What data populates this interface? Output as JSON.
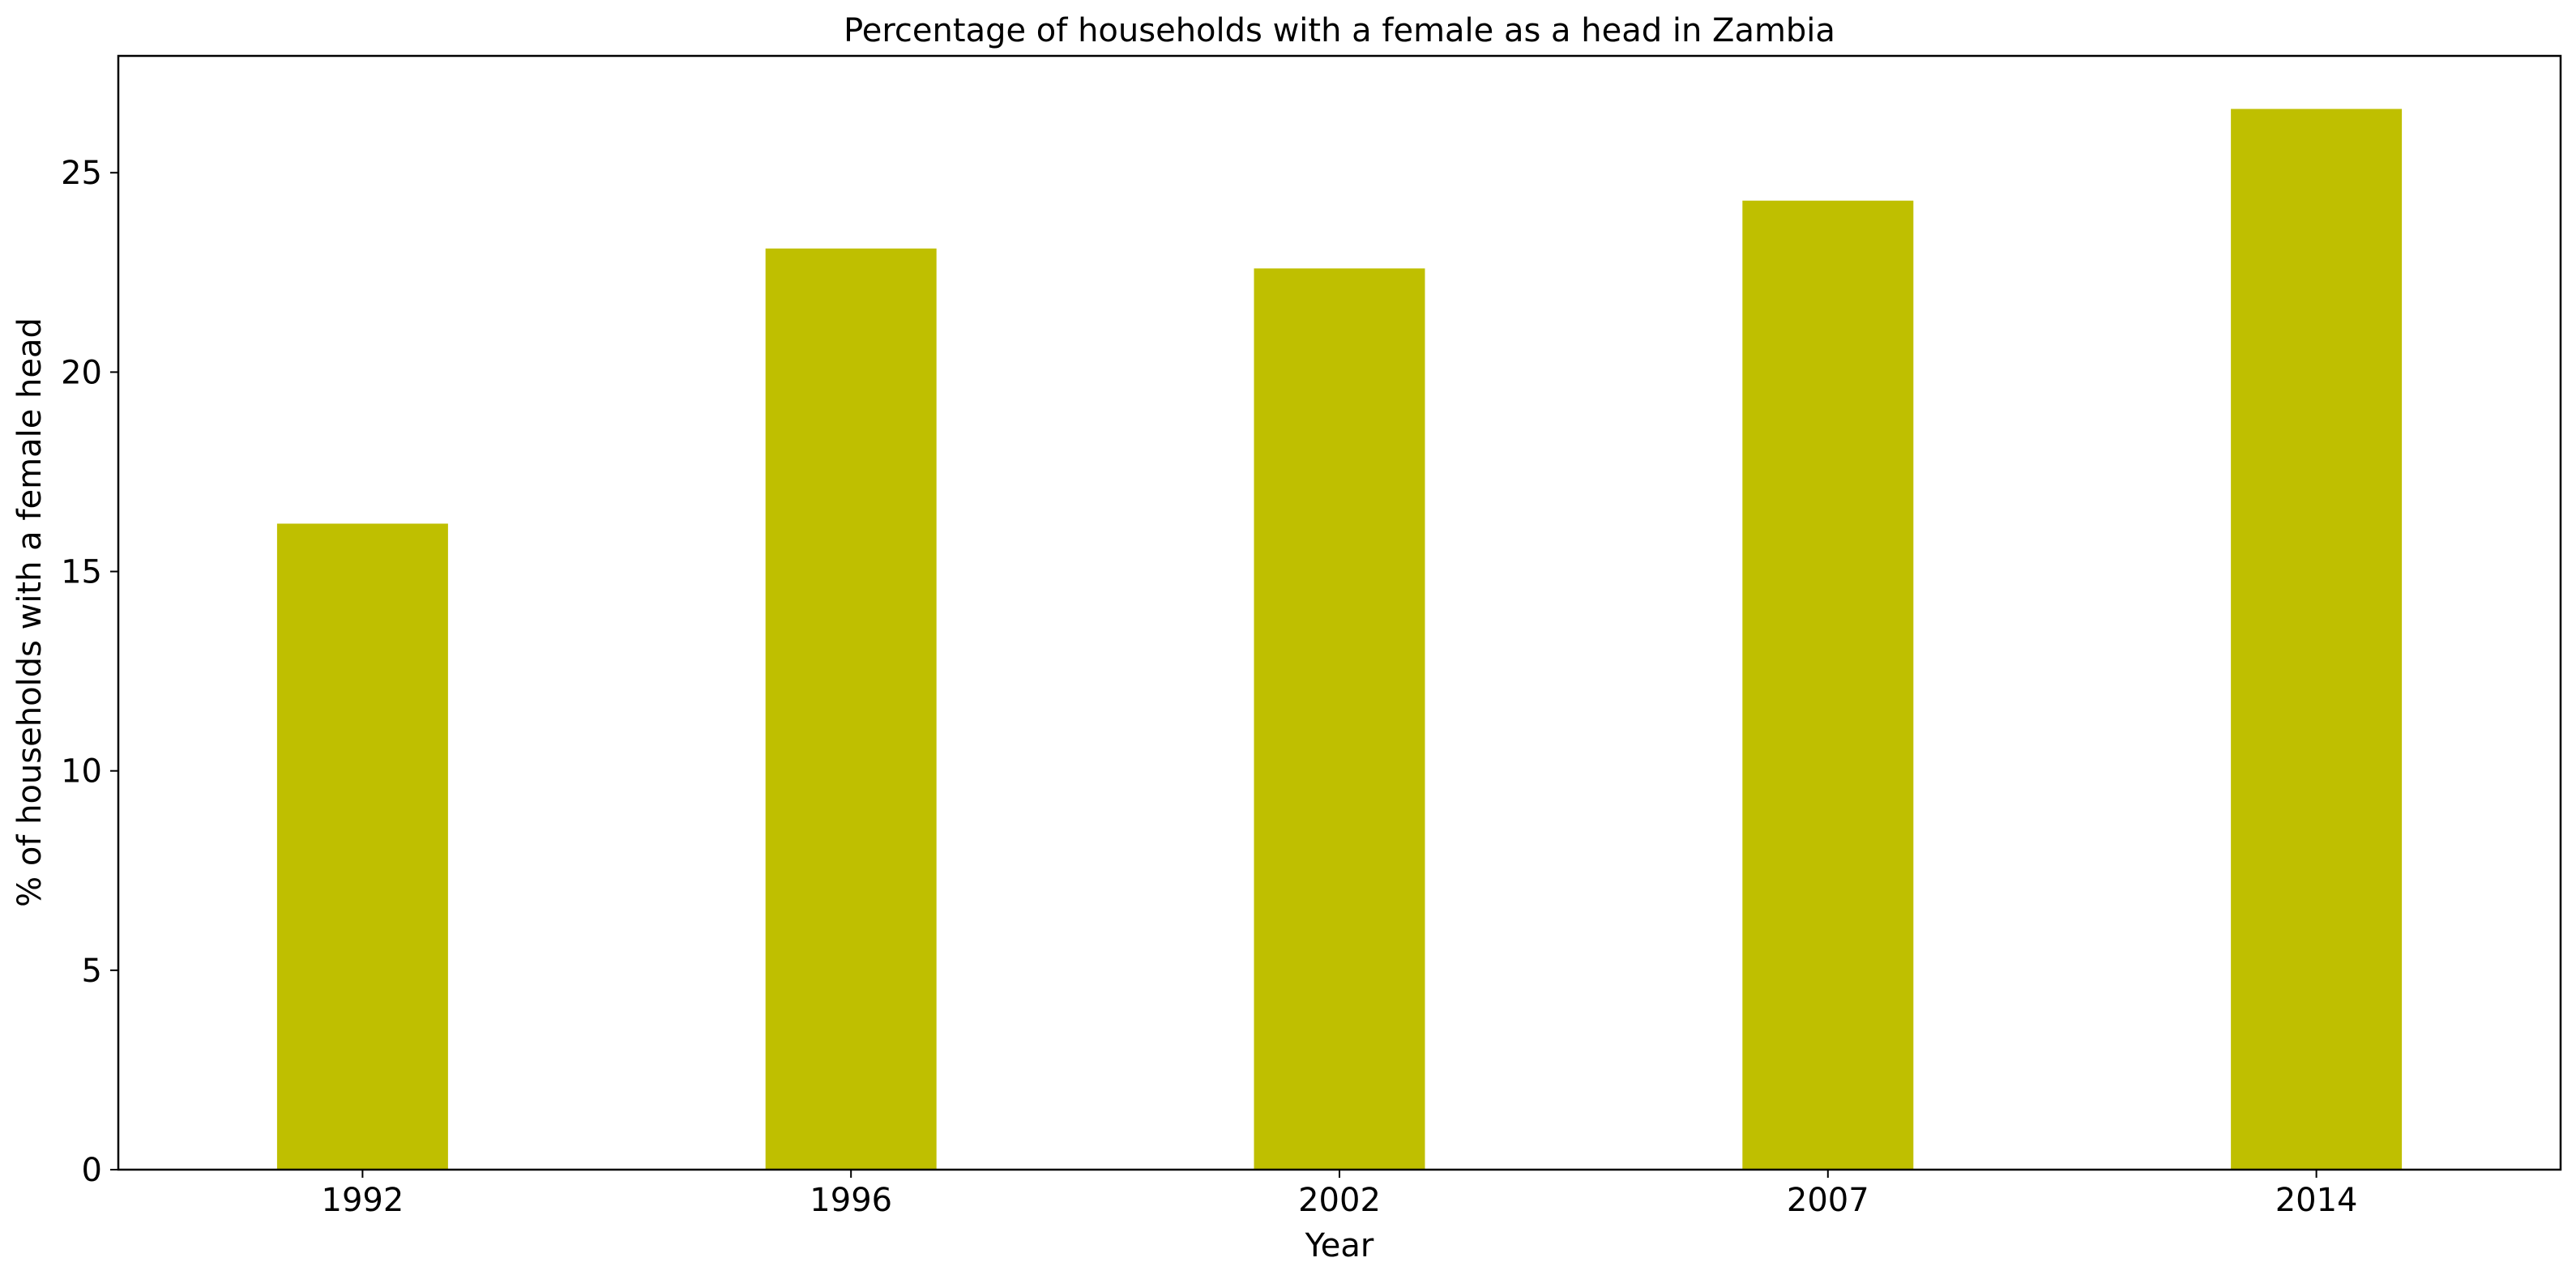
{
  "chart_data": {
    "type": "bar",
    "title": "Percentage of households with a female as a head in Zambia",
    "xlabel": "Year",
    "ylabel": "% of households with a female head",
    "categories": [
      "1992",
      "1996",
      "2002",
      "2007",
      "2014"
    ],
    "values": [
      16.2,
      23.1,
      22.6,
      24.3,
      26.6
    ],
    "ylim": [
      0,
      27.93
    ],
    "yticks": [
      0,
      5,
      10,
      15,
      20,
      25
    ],
    "grid": false,
    "legend": "none",
    "bar_color": "#bfbf00"
  }
}
